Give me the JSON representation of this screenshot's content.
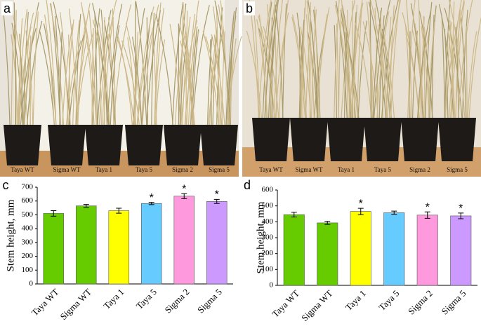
{
  "photos": [
    {
      "panel": "a",
      "pot_labels": [
        "Taya WT",
        "Sigma WT",
        "Taya 1",
        "Taya 5",
        "Sigma 2",
        "Sigma 5"
      ]
    },
    {
      "panel": "b",
      "pot_labels": [
        "Taya WT",
        "Sigma WT",
        "Taya 1",
        "Taya 5",
        "Sigma 2",
        "Sigma 5"
      ]
    }
  ],
  "chart_data": [
    {
      "type": "bar",
      "panel": "c",
      "y_label": "Stem height, mm",
      "categories": [
        "Taya WT",
        "Sigma WT",
        "Taya 1",
        "Taya 5",
        "Sigma 2",
        "Sigma 5"
      ],
      "values": [
        510,
        565,
        530,
        582,
        635,
        597
      ],
      "errors": [
        20,
        10,
        18,
        8,
        18,
        15
      ],
      "markers": [
        null,
        null,
        null,
        "*",
        "*",
        "*"
      ],
      "colors": [
        "#66cc00",
        "#66cc00",
        "#ffff00",
        "#66ccff",
        "#ff99dd",
        "#cc99ff"
      ],
      "ylim": [
        0,
        700
      ],
      "yticks": [
        0,
        100,
        200,
        300,
        400,
        500,
        600,
        700
      ],
      "grid": false
    },
    {
      "type": "bar",
      "panel": "d",
      "y_label": "Stem height, mm",
      "categories": [
        "Taya WT",
        "Sigma WT",
        "Taya 1",
        "Taya 5",
        "Sigma 2",
        "Sigma 5"
      ],
      "values": [
        445,
        393,
        465,
        457,
        442,
        437
      ],
      "errors": [
        15,
        10,
        20,
        10,
        20,
        18
      ],
      "markers": [
        null,
        null,
        "*",
        null,
        "*",
        "*"
      ],
      "colors": [
        "#66cc00",
        "#66cc00",
        "#ffff00",
        "#66ccff",
        "#ff99dd",
        "#cc99ff"
      ],
      "ylim": [
        0,
        600
      ],
      "yticks": [
        0,
        100,
        200,
        300,
        400,
        500,
        600
      ],
      "grid": false
    }
  ]
}
